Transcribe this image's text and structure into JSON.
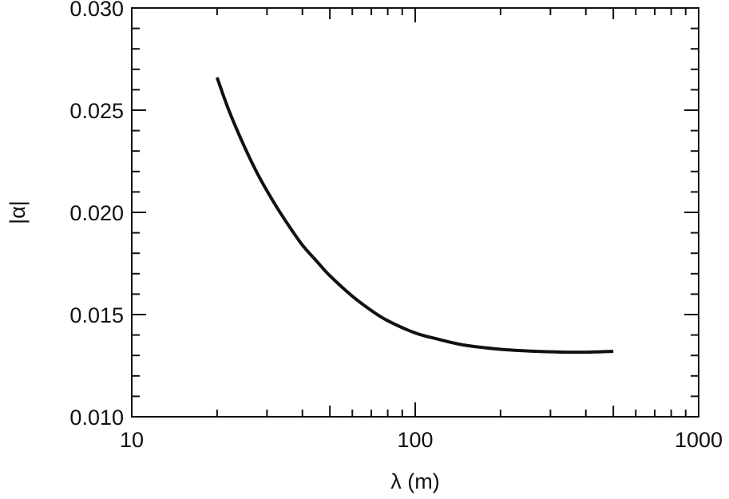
{
  "chart_data": {
    "type": "line",
    "title": "",
    "xlabel": "λ (m)",
    "ylabel": "|α|",
    "xscale": "log",
    "xlim": [
      10,
      1000
    ],
    "ylim": [
      0.01,
      0.03
    ],
    "x_ticks": [
      10,
      100,
      1000
    ],
    "x_tick_labels": [
      "10",
      "100",
      "1000"
    ],
    "y_ticks": [
      0.01,
      0.015,
      0.02,
      0.025,
      0.03
    ],
    "y_tick_labels": [
      "0.010",
      "0.015",
      "0.020",
      "0.025",
      "0.030"
    ],
    "grid": false,
    "legend": "none",
    "line_color": "#111111",
    "series": [
      {
        "x": [
          20,
          22,
          25,
          28,
          32,
          36,
          40,
          45,
          50,
          60,
          70,
          80,
          100,
          120,
          150,
          200,
          250,
          300,
          350,
          400,
          450,
          500
        ],
        "values": [
          0.0266,
          0.025,
          0.0232,
          0.0218,
          0.0204,
          0.0193,
          0.0184,
          0.0176,
          0.0169,
          0.0159,
          0.0152,
          0.0147,
          0.0141,
          0.0138,
          0.0135,
          0.0133,
          0.01322,
          0.01318,
          0.01316,
          0.01316,
          0.01318,
          0.0132
        ]
      }
    ]
  }
}
